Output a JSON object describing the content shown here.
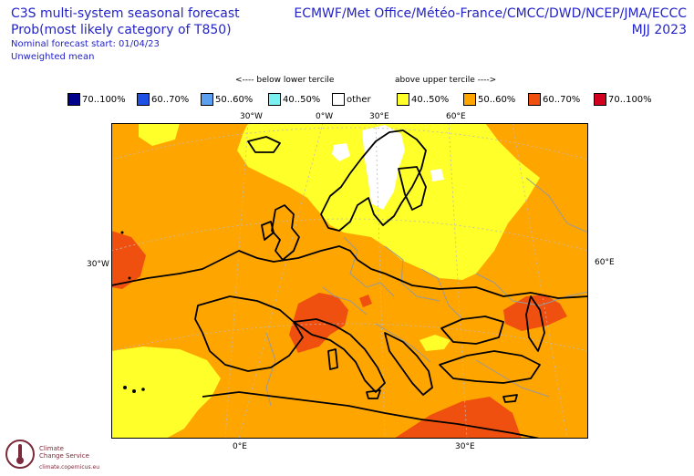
{
  "header": {
    "left": {
      "line1": "C3S multi-system seasonal forecast",
      "line2": "Prob(most likely category of T850)",
      "line3": "Nominal forecast start: 01/04/23",
      "line4": "Unweighted mean"
    },
    "right": {
      "line1": "ECMWF/Met Office/Météo-France/CMCC/DWD/NCEP/JMA/ECCC",
      "line2": "MJJ 2023"
    }
  },
  "legend": {
    "below_label": "<---- below lower tercile",
    "above_label": "above upper tercile ---->",
    "items": [
      {
        "label": "70..100%",
        "color": "#00008b"
      },
      {
        "label": "60..70%",
        "color": "#1e50e6"
      },
      {
        "label": "50..60%",
        "color": "#5aa0f0"
      },
      {
        "label": "40..50%",
        "color": "#7af0f0"
      },
      {
        "label": "other",
        "color": "#ffffff"
      },
      {
        "label": "40..50%",
        "color": "#ffff2a"
      },
      {
        "label": "50..60%",
        "color": "#ffa500"
      },
      {
        "label": "60..70%",
        "color": "#f0500f"
      },
      {
        "label": "70..100%",
        "color": "#d2001e"
      }
    ]
  },
  "map_labels": {
    "top": [
      "30°W",
      "0°W",
      "30°E",
      "60°E"
    ],
    "left": "30°W",
    "right": "60°E",
    "bottom": [
      "0°E",
      "30°E"
    ]
  },
  "logo": {
    "name_line1": "Climate",
    "name_line2": "Change Service",
    "url": "climate.copernicus.eu"
  }
}
